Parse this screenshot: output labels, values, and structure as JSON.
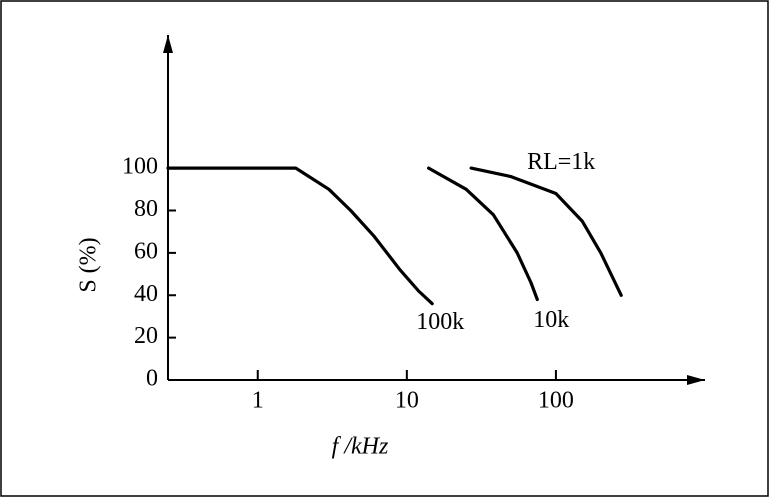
{
  "chart_data": {
    "type": "line",
    "x_label": "f /kHz",
    "y_label": "S (%)",
    "log_x": true,
    "xlim": [
      0.25,
      1000
    ],
    "xticks": [
      1,
      10,
      100
    ],
    "ylim": [
      0,
      160
    ],
    "yticks": [
      0,
      20,
      40,
      60,
      80,
      100
    ],
    "series": [
      {
        "name": "100k",
        "color": "#000000",
        "x": [
          0.25,
          1.8,
          3,
          4.2,
          6,
          9,
          12,
          14.8
        ],
        "values": [
          100,
          100,
          90,
          80,
          68,
          52,
          42,
          36
        ]
      },
      {
        "name": "10k",
        "color": "#000000",
        "x": [
          14,
          25,
          38,
          55,
          68,
          75
        ],
        "values": [
          100,
          90,
          78,
          60,
          46,
          38
        ]
      },
      {
        "name": "RL=1k",
        "color": "#000000",
        "x": [
          27,
          50,
          100,
          150,
          200,
          274
        ],
        "values": [
          100,
          96,
          88,
          75,
          60,
          40
        ]
      }
    ]
  }
}
